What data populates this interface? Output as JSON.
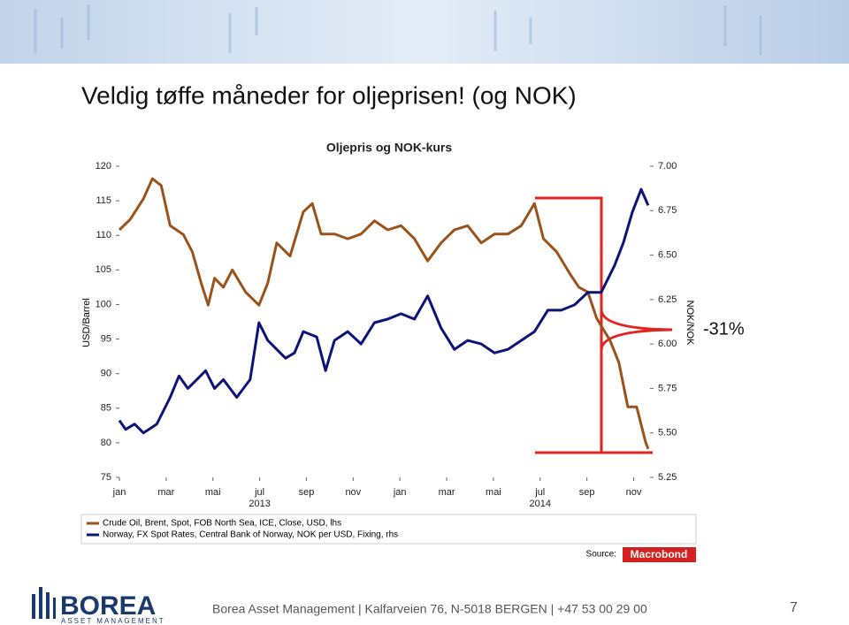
{
  "header": {
    "title": "Veldig tøffe måneder for oljeprisen! (og NOK)"
  },
  "chart_data": {
    "type": "line",
    "title": "Oljepris og NOK-kurs",
    "ylabel": "USD/Barrel",
    "y2label": "NOK/NOK",
    "xlim": [
      0,
      22.7
    ],
    "xticks": [
      {
        "value": 0,
        "label": "jan"
      },
      {
        "value": 2,
        "label": "mar"
      },
      {
        "value": 4,
        "label": "mai"
      },
      {
        "value": 6,
        "label": "jul"
      },
      {
        "value": 8,
        "label": "sep"
      },
      {
        "value": 10,
        "label": "nov"
      },
      {
        "value": 12,
        "label": "jan"
      },
      {
        "value": 14,
        "label": "mar"
      },
      {
        "value": 16,
        "label": "mai"
      },
      {
        "value": 18,
        "label": "jul"
      },
      {
        "value": 20,
        "label": "sep"
      },
      {
        "value": 22,
        "label": "nov"
      }
    ],
    "xgroups": [
      {
        "value": 6,
        "label": "2013"
      },
      {
        "value": 18,
        "label": "2014"
      }
    ],
    "ylim": [
      75,
      120
    ],
    "yticks": [
      120,
      115,
      110,
      105,
      100,
      95,
      90,
      85,
      80,
      75
    ],
    "y2lim": [
      5.25,
      7.0
    ],
    "y2ticks": [
      {
        "value": 7,
        "label": "7.00"
      },
      {
        "value": 6.75,
        "label": "6.75"
      },
      {
        "value": 6.5,
        "label": "6.50"
      },
      {
        "value": 6.25,
        "label": "6.25"
      },
      {
        "value": 6,
        "label": "6.00"
      },
      {
        "value": 5.75,
        "label": "5.75"
      },
      {
        "value": 5.5,
        "label": "5.50"
      },
      {
        "value": 5.25,
        "label": "5.25"
      }
    ],
    "series": [
      {
        "name": "Crude Oil, Brent, Spot, FOB North Sea, ICE, Close, USD, lhs",
        "color": "#9a531c",
        "axis": "y",
        "x": [
          0,
          0.46,
          1.03,
          1.41,
          1.79,
          2.17,
          2.74,
          3.12,
          3.5,
          3.8,
          4.07,
          4.45,
          4.83,
          5.4,
          5.97,
          6.35,
          6.73,
          7.3,
          7.87,
          8.25,
          8.63,
          9.2,
          9.77,
          10.34,
          10.91,
          11.48,
          12.05,
          12.62,
          13.19,
          13.76,
          14.33,
          14.9,
          15.48,
          16.05,
          16.62,
          17.19,
          17.76,
          18.14,
          18.71,
          19.28,
          19.66,
          20.04,
          20.42,
          20.99,
          21.37,
          21.75,
          22.13,
          22.51,
          22.62
        ],
        "values": [
          110.8,
          112.3,
          115.3,
          118.2,
          117.2,
          111.4,
          110.1,
          107.6,
          103.1,
          99.9,
          103.8,
          102.5,
          105.0,
          101.8,
          99.9,
          103.1,
          108.9,
          107.0,
          113.4,
          114.6,
          110.2,
          110.2,
          109.5,
          110.2,
          112.1,
          110.8,
          111.4,
          109.5,
          106.3,
          108.9,
          110.8,
          111.4,
          108.9,
          110.2,
          110.2,
          111.4,
          114.6,
          109.5,
          107.6,
          104.4,
          102.5,
          101.8,
          98.0,
          94.8,
          91.6,
          85.2,
          85.2,
          80.1,
          79.1
        ]
      },
      {
        "name": "Norway, FX Spot Rates, Central Bank of Norway, NOK per USD, Fixing, rhs",
        "color": "#0c1478",
        "axis": "y2",
        "x": [
          0,
          0.27,
          0.65,
          1.03,
          1.6,
          2.17,
          2.55,
          2.93,
          3.31,
          3.69,
          4.07,
          4.45,
          5.02,
          5.59,
          5.97,
          6.35,
          6.73,
          7.11,
          7.49,
          7.87,
          8.44,
          8.82,
          9.2,
          9.77,
          10.34,
          10.91,
          11.48,
          12.05,
          12.62,
          13.19,
          13.76,
          14.33,
          14.9,
          15.48,
          16.05,
          16.62,
          17.19,
          17.76,
          18.33,
          18.9,
          19.47,
          20.04,
          20.61,
          21.18,
          21.56,
          21.94,
          22.32,
          22.62
        ],
        "values": [
          5.57,
          5.52,
          5.55,
          5.5,
          5.55,
          5.7,
          5.82,
          5.75,
          5.8,
          5.85,
          5.75,
          5.8,
          5.7,
          5.8,
          6.12,
          6.02,
          5.97,
          5.92,
          5.95,
          6.07,
          6.04,
          5.85,
          6.02,
          6.07,
          6.0,
          6.12,
          6.14,
          6.17,
          6.14,
          6.27,
          6.09,
          5.97,
          6.02,
          6.0,
          5.95,
          5.97,
          6.02,
          6.07,
          6.19,
          6.19,
          6.22,
          6.29,
          6.29,
          6.44,
          6.57,
          6.74,
          6.87,
          6.78
        ]
      }
    ],
    "annotation": "-31%",
    "source_label": "Source:",
    "source": "Macrobond"
  },
  "footer": {
    "logo": "BOREA",
    "logo_sub": "ASSET MANAGEMENT",
    "text": "Borea Asset Management | Kalfarveien 76, N-5018 BERGEN | +47 53 00 29 00",
    "page": "7"
  }
}
